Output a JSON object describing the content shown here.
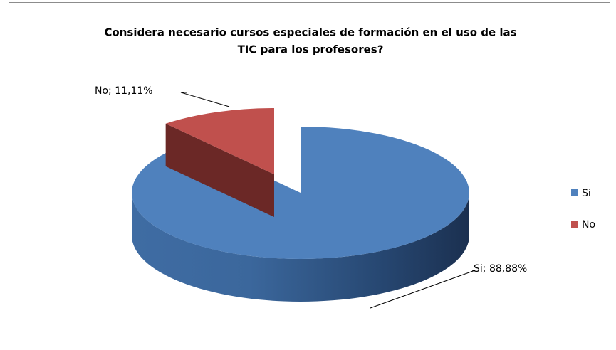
{
  "chart_data": {
    "type": "pie",
    "title": [
      "Considera necesario cursos especiales de formación en el uso de las",
      "TIC para los profesores?"
    ],
    "categories": [
      "Si",
      "No"
    ],
    "values": [
      88.88,
      11.11
    ],
    "value_labels": [
      "Si; 88,88%",
      "No; 11,11%"
    ],
    "colors": [
      "#4f81bd",
      "#c0504d"
    ],
    "legend": "right"
  }
}
